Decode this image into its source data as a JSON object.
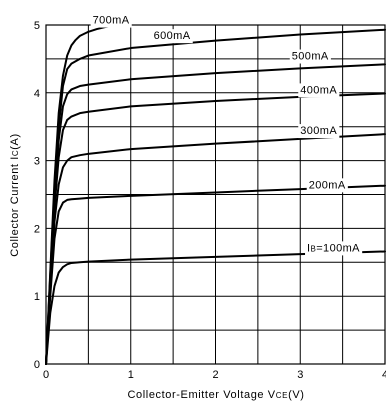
{
  "chart_data": {
    "type": "line",
    "xlabel": "Collector-Emitter Voltage VCE(V)",
    "ylabel": "Collector Current IC(A)",
    "xlabel_parts": [
      {
        "text": "Collector-Emitter Voltage V",
        "sub": false
      },
      {
        "text": "CE",
        "sub": true
      },
      {
        "text": "(V)",
        "sub": false
      }
    ],
    "ylabel_parts": [
      {
        "text": "Collector Current I",
        "sub": false
      },
      {
        "text": "C",
        "sub": true
      },
      {
        "text": "(A)",
        "sub": false
      }
    ],
    "xlim": [
      0,
      4
    ],
    "ylim": [
      0,
      5
    ],
    "x_ticks": [
      0,
      1,
      2,
      3,
      4
    ],
    "y_ticks": [
      0,
      1,
      2,
      3,
      4,
      5
    ],
    "x_grid_step": 0.5,
    "y_grid_step": 0.5,
    "grid": true,
    "series": [
      {
        "name": "IB=100mA",
        "label_parts": [
          {
            "text": "I",
            "sub": false
          },
          {
            "text": "B",
            "sub": true
          },
          {
            "text": "=100mA",
            "sub": false
          }
        ],
        "x": [
          0,
          0.05,
          0.1,
          0.15,
          0.2,
          0.25,
          0.3,
          0.4,
          0.5,
          1,
          2,
          3,
          4
        ],
        "y": [
          0,
          0.75,
          1.15,
          1.35,
          1.43,
          1.47,
          1.49,
          1.5,
          1.51,
          1.54,
          1.58,
          1.62,
          1.66
        ]
      },
      {
        "name": "200mA",
        "label_parts": [
          {
            "text": "200mA",
            "sub": false
          }
        ],
        "x": [
          0,
          0.05,
          0.1,
          0.15,
          0.2,
          0.25,
          0.3,
          0.4,
          0.5,
          1,
          2,
          3,
          4
        ],
        "y": [
          0,
          1.0,
          1.85,
          2.25,
          2.38,
          2.42,
          2.43,
          2.44,
          2.45,
          2.48,
          2.53,
          2.58,
          2.63
        ]
      },
      {
        "name": "300mA",
        "label_parts": [
          {
            "text": "300mA",
            "sub": false
          }
        ],
        "x": [
          0,
          0.05,
          0.1,
          0.15,
          0.2,
          0.25,
          0.3,
          0.4,
          0.5,
          1,
          2,
          3,
          4
        ],
        "y": [
          0,
          1.1,
          2.1,
          2.65,
          2.9,
          3.0,
          3.05,
          3.08,
          3.1,
          3.17,
          3.25,
          3.32,
          3.39
        ]
      },
      {
        "name": "400mA",
        "label_parts": [
          {
            "text": "400mA",
            "sub": false
          }
        ],
        "x": [
          0,
          0.05,
          0.1,
          0.15,
          0.2,
          0.25,
          0.3,
          0.4,
          0.5,
          1,
          2,
          3,
          4
        ],
        "y": [
          0,
          1.2,
          2.3,
          3.05,
          3.45,
          3.6,
          3.65,
          3.7,
          3.72,
          3.8,
          3.88,
          3.94,
          3.99
        ]
      },
      {
        "name": "500mA",
        "label_parts": [
          {
            "text": "500mA",
            "sub": false
          }
        ],
        "x": [
          0,
          0.05,
          0.1,
          0.15,
          0.2,
          0.25,
          0.3,
          0.4,
          0.5,
          1,
          2,
          3,
          4
        ],
        "y": [
          0,
          1.25,
          2.45,
          3.3,
          3.8,
          3.98,
          4.05,
          4.1,
          4.12,
          4.2,
          4.29,
          4.36,
          4.42
        ]
      },
      {
        "name": "600mA",
        "label_parts": [
          {
            "text": "600mA",
            "sub": false
          }
        ],
        "x": [
          0,
          0.05,
          0.1,
          0.15,
          0.2,
          0.25,
          0.3,
          0.4,
          0.5,
          1,
          2,
          3,
          4
        ],
        "y": [
          0,
          1.3,
          2.55,
          3.5,
          4.1,
          4.35,
          4.43,
          4.5,
          4.55,
          4.66,
          4.77,
          4.86,
          4.93
        ]
      },
      {
        "name": "700mA",
        "label_parts": [
          {
            "text": "700mA",
            "sub": false
          }
        ],
        "x": [
          0,
          0.05,
          0.1,
          0.15,
          0.2,
          0.25,
          0.3,
          0.35,
          0.4,
          0.5,
          0.6,
          0.7,
          0.8,
          0.9,
          0.95
        ],
        "y": [
          0,
          1.35,
          2.7,
          3.7,
          4.25,
          4.55,
          4.7,
          4.78,
          4.84,
          4.9,
          4.94,
          4.97,
          4.99,
          5.0,
          5.0
        ]
      }
    ],
    "annotations": [
      {
        "series": 6,
        "x": 0.55,
        "y": 5.08
      },
      {
        "series": 5,
        "x": 1.27,
        "y": 4.85
      },
      {
        "series": 4,
        "x": 2.9,
        "y": 4.55
      },
      {
        "series": 3,
        "x": 3.0,
        "y": 4.05
      },
      {
        "series": 2,
        "x": 3.0,
        "y": 3.45
      },
      {
        "series": 1,
        "x": 3.1,
        "y": 2.65
      },
      {
        "series": 0,
        "x": 3.08,
        "y": 1.72
      }
    ]
  }
}
